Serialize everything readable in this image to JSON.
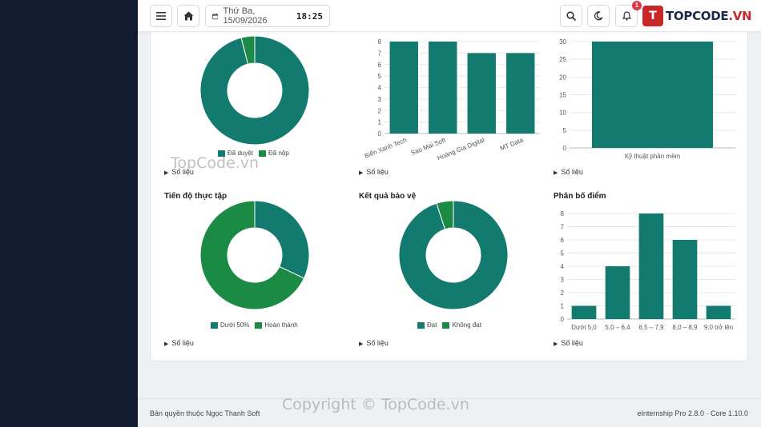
{
  "topbar": {
    "menu_icon": "menu-icon",
    "home_icon": "home-icon",
    "date": "Thứ Ba, 15/09/2026",
    "time": "18:25",
    "search_icon": "search-icon",
    "theme_icon": "moon-icon",
    "notif_icon": "bell-icon",
    "notif_count": "1",
    "logo_letter": "T",
    "logo_text_main": "TOPCODE",
    "logo_text_accent": ".VN"
  },
  "colors": {
    "teal": "#127a6e",
    "green": "#1b8a45",
    "sidebar": "#111a2e"
  },
  "panels": [
    {
      "id": "p1",
      "title": "",
      "chart_data": {
        "type": "pie",
        "donut": true,
        "labels": [
          "Đã duyệt",
          "Đã nộp"
        ],
        "values": [
          96,
          4
        ],
        "colors": [
          "#127a6e",
          "#1b8a45"
        ]
      },
      "legend": [
        "Đã duyệt",
        "Đã nộp"
      ],
      "toggle": "Số liệu"
    },
    {
      "id": "p2",
      "title": "",
      "chart_data": {
        "type": "bar",
        "categories": [
          "Biển Xanh Tech",
          "Sao Mai Soft",
          "Hoàng Gia Digital",
          "MT Data"
        ],
        "values": [
          8,
          8,
          7,
          7
        ],
        "ylim": [
          0,
          8
        ],
        "yticks": [
          "0",
          "1",
          "2",
          "3",
          "4",
          "5",
          "6",
          "7",
          "8"
        ]
      },
      "toggle": "Số liệu"
    },
    {
      "id": "p3",
      "title": "",
      "chart_data": {
        "type": "bar",
        "categories": [
          "Kỹ thuật phần mềm"
        ],
        "values": [
          30
        ],
        "ylim": [
          0,
          30
        ],
        "yticks": [
          "0",
          "5",
          "10",
          "15",
          "20",
          "25",
          "30"
        ]
      },
      "toggle": "Số liệu"
    },
    {
      "id": "p4",
      "title": "Tiến độ thực tập",
      "chart_data": {
        "type": "pie",
        "donut": true,
        "labels": [
          "Dưới 50%",
          "Hoàn thành"
        ],
        "values": [
          32,
          68
        ],
        "colors": [
          "#127a6e",
          "#1b8a45"
        ]
      },
      "legend": [
        "Dưới 50%",
        "Hoàn thành"
      ],
      "toggle": "Số liệu"
    },
    {
      "id": "p5",
      "title": "Kết quả bảo vệ",
      "chart_data": {
        "type": "pie",
        "donut": true,
        "labels": [
          "Đạt",
          "Không đạt"
        ],
        "values": [
          95,
          5
        ],
        "colors": [
          "#127a6e",
          "#1b8a45"
        ]
      },
      "legend": [
        "Đạt",
        "Không đạt"
      ],
      "toggle": "Số liệu"
    },
    {
      "id": "p6",
      "title": "Phân bố điểm",
      "chart_data": {
        "type": "bar",
        "categories": [
          "Dưới 5,0",
          "5,0 – 6,4",
          "6,5 – 7,9",
          "8,0 – 8,9",
          "9,0 trở lên"
        ],
        "values": [
          1,
          4,
          8,
          6,
          1
        ],
        "ylim": [
          0,
          8
        ],
        "yticks": [
          "0",
          "1",
          "2",
          "3",
          "4",
          "5",
          "6",
          "7",
          "8"
        ]
      },
      "toggle": "Số liệu"
    }
  ],
  "footer": {
    "copyright": "Bản quyền thuộc Ngọc Thanh Soft",
    "version": "eInternship Pro 2.8.0 · Core 1.10.0"
  },
  "watermarks": {
    "small": "TopCode.vn",
    "large": "Copyright © TopCode.vn"
  }
}
